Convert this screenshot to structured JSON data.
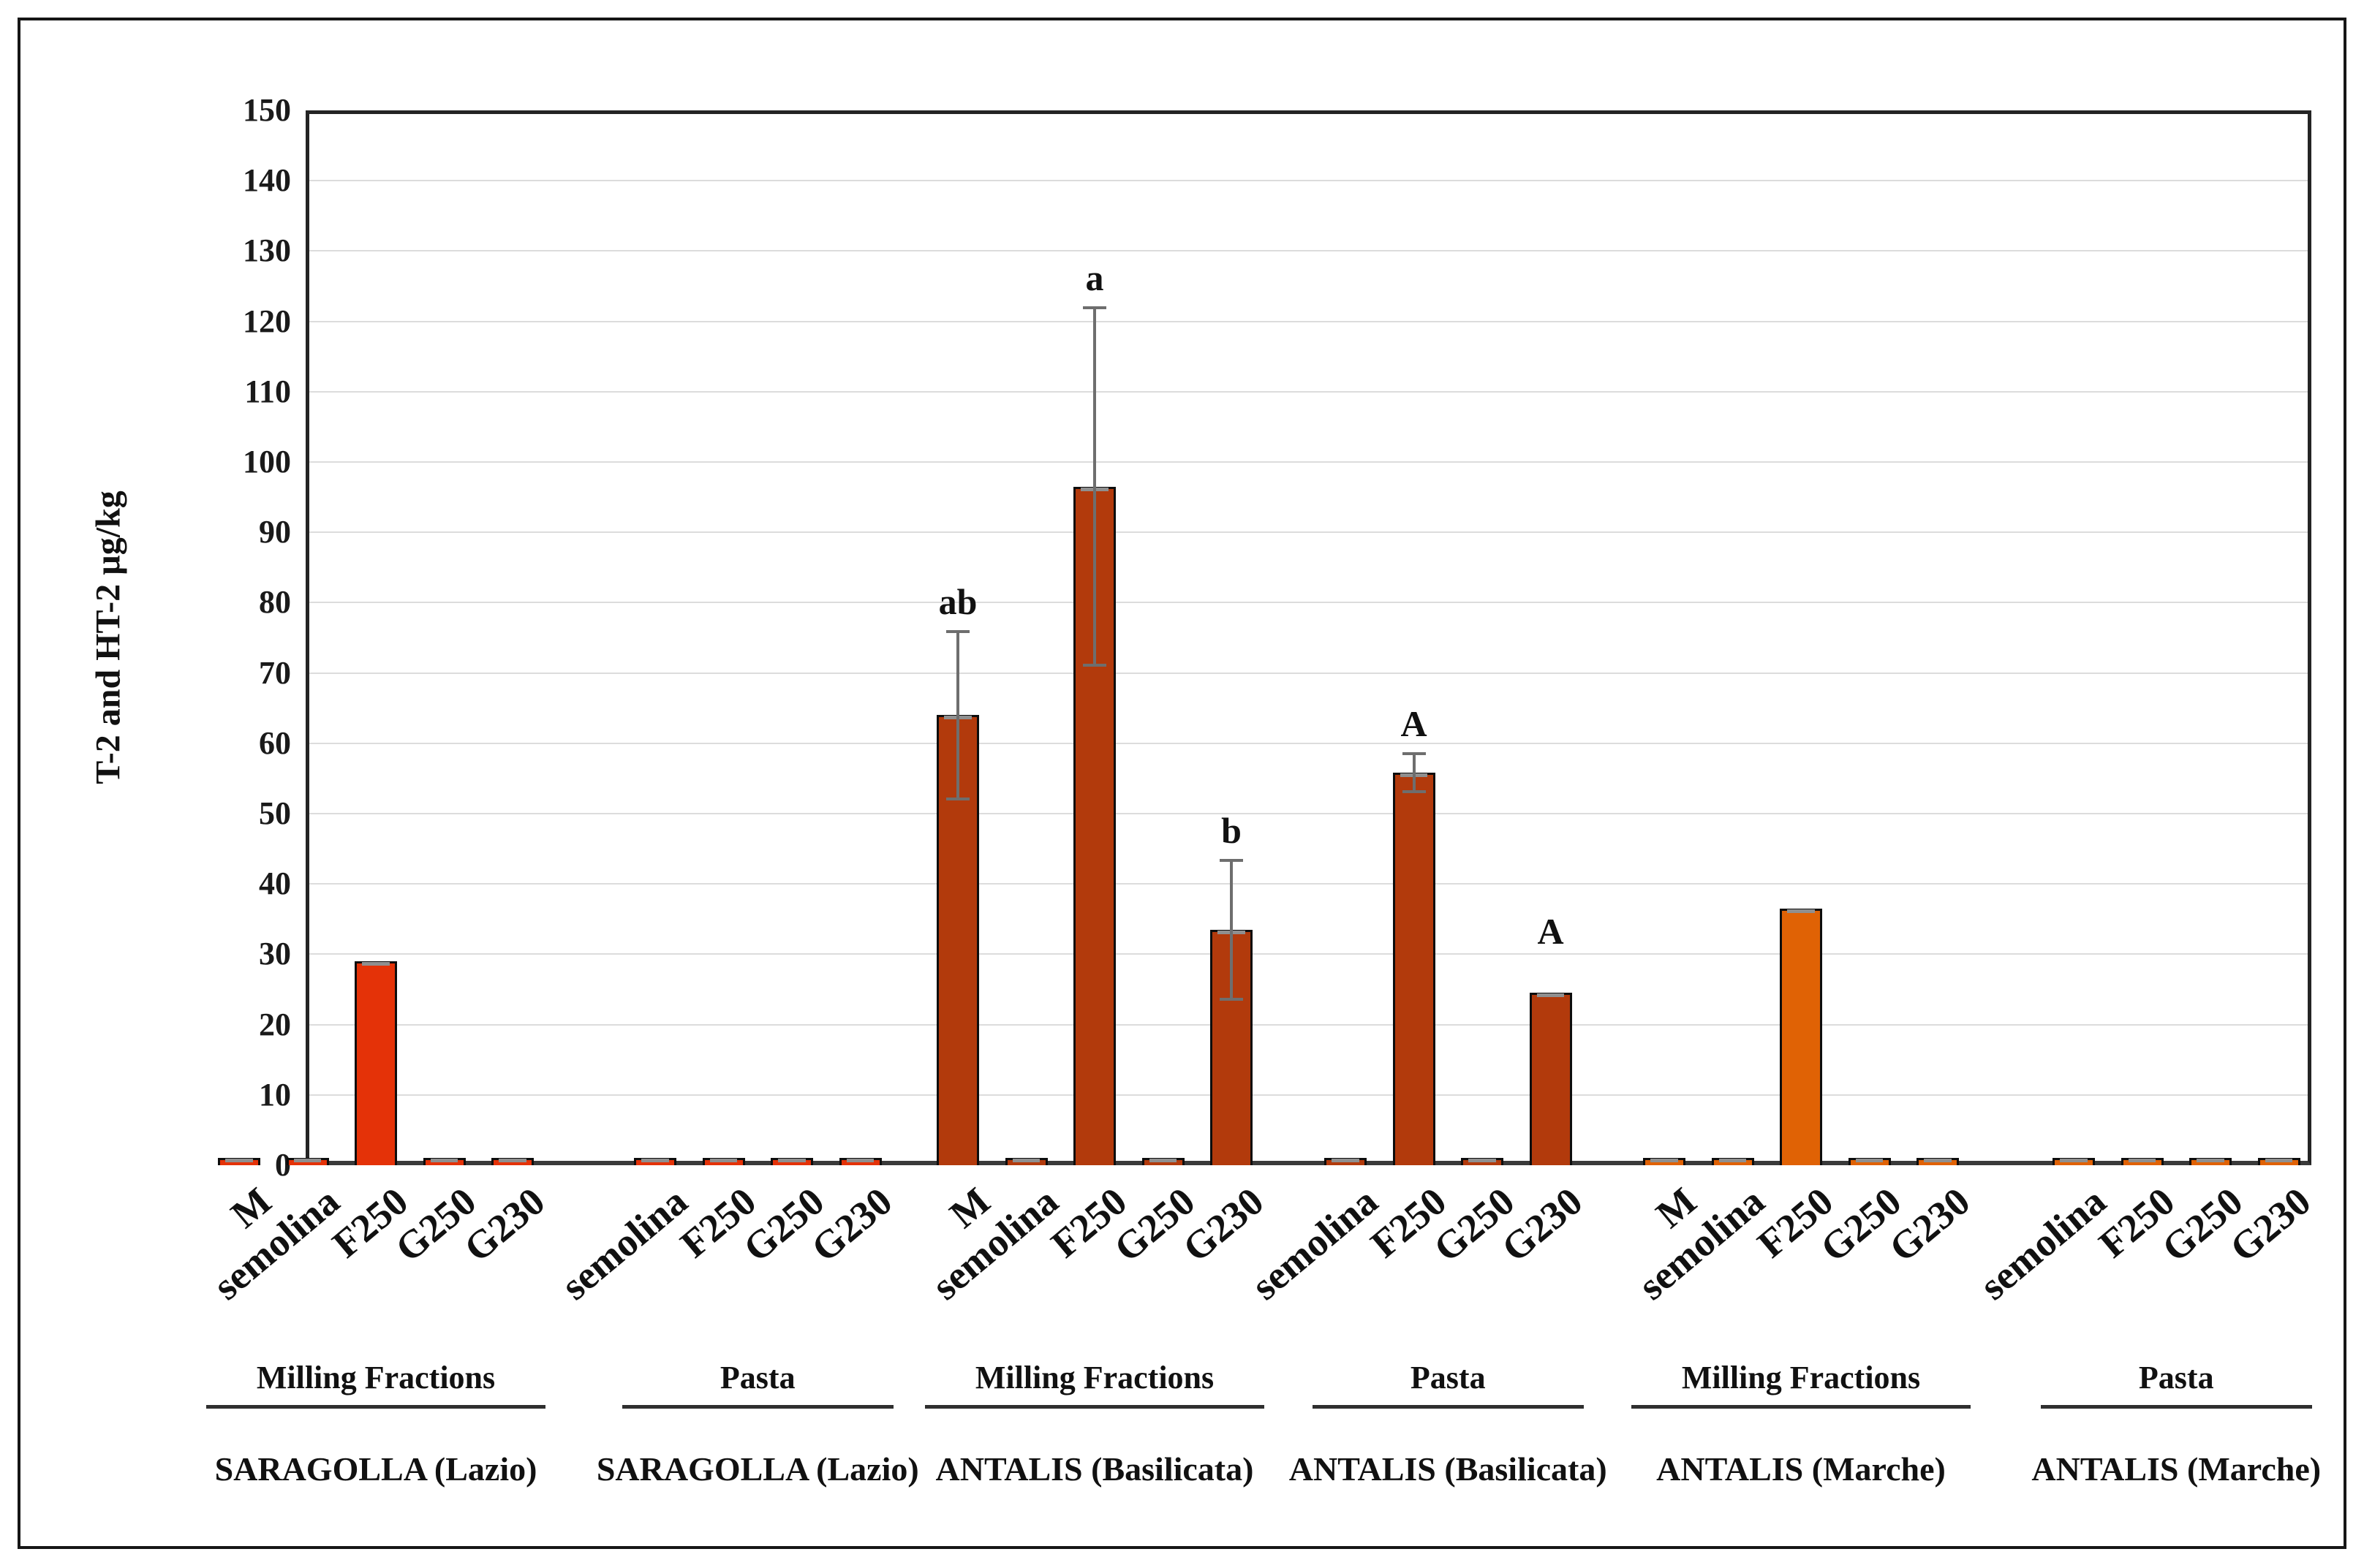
{
  "chart_data": {
    "type": "bar",
    "title": "",
    "ylabel": "T-2 and HT-2 µg/kg",
    "ylim": [
      0,
      150
    ],
    "ytick_step": 10,
    "yticks": [
      0,
      10,
      20,
      30,
      40,
      50,
      60,
      70,
      80,
      90,
      100,
      110,
      120,
      130,
      140,
      150
    ],
    "grid": "horizontal",
    "legend": "none",
    "error_bar_color": "#6E6E6E",
    "gridline_color": "#DCDCDC",
    "groups": [
      {
        "section": "Milling Fractions",
        "variety": "SARAGOLLA (Lazio)",
        "color": "#E43208",
        "bars": [
          {
            "label": "M",
            "value": 1
          },
          {
            "label": "semolina",
            "value": 1
          },
          {
            "label": "F250",
            "value": 29
          },
          {
            "label": "G250",
            "value": 1
          },
          {
            "label": "G230",
            "value": 1
          }
        ]
      },
      {
        "section": "Pasta",
        "variety": "SARAGOLLA (Lazio)",
        "color": "#E43208",
        "bars": [
          {
            "label": "semolina",
            "value": 1
          },
          {
            "label": "F250",
            "value": 1
          },
          {
            "label": "G250",
            "value": 1
          },
          {
            "label": "G230",
            "value": 1
          }
        ]
      },
      {
        "section": "Milling Fractions",
        "variety": "ANTALIS (Basilicata)",
        "color": "#B23A0C",
        "bars": [
          {
            "label": "M",
            "value": 64,
            "error": 12,
            "letter": "ab"
          },
          {
            "label": "semolina",
            "value": 1
          },
          {
            "label": "F250",
            "value": 96.5,
            "error": 25.5,
            "letter": "a"
          },
          {
            "label": "G250",
            "value": 1
          },
          {
            "label": "G230",
            "value": 33.5,
            "error": 10,
            "letter": "b"
          }
        ]
      },
      {
        "section": "Pasta",
        "variety": "ANTALIS (Basilicata)",
        "color": "#B23A0C",
        "bars": [
          {
            "label": "semolina",
            "value": 1
          },
          {
            "label": "F250",
            "value": 55.8,
            "error": 2.8,
            "letter": "A"
          },
          {
            "label": "G250",
            "value": 1
          },
          {
            "label": "G230",
            "value": 24.5,
            "letter": "A"
          }
        ]
      },
      {
        "section": "Milling Fractions",
        "variety": "ANTALIS (Marche)",
        "color": "#E06205",
        "bars": [
          {
            "label": "M",
            "value": 1
          },
          {
            "label": "semolina",
            "value": 1
          },
          {
            "label": "F250",
            "value": 36.5
          },
          {
            "label": "G250",
            "value": 1
          },
          {
            "label": "G230",
            "value": 1
          }
        ]
      },
      {
        "section": "Pasta",
        "variety": "ANTALIS (Marche)",
        "color": "#E06205",
        "bars": [
          {
            "label": "semolina",
            "value": 1
          },
          {
            "label": "F250",
            "value": 1
          },
          {
            "label": "G250",
            "value": 1
          },
          {
            "label": "G230",
            "value": 1
          }
        ]
      }
    ]
  }
}
